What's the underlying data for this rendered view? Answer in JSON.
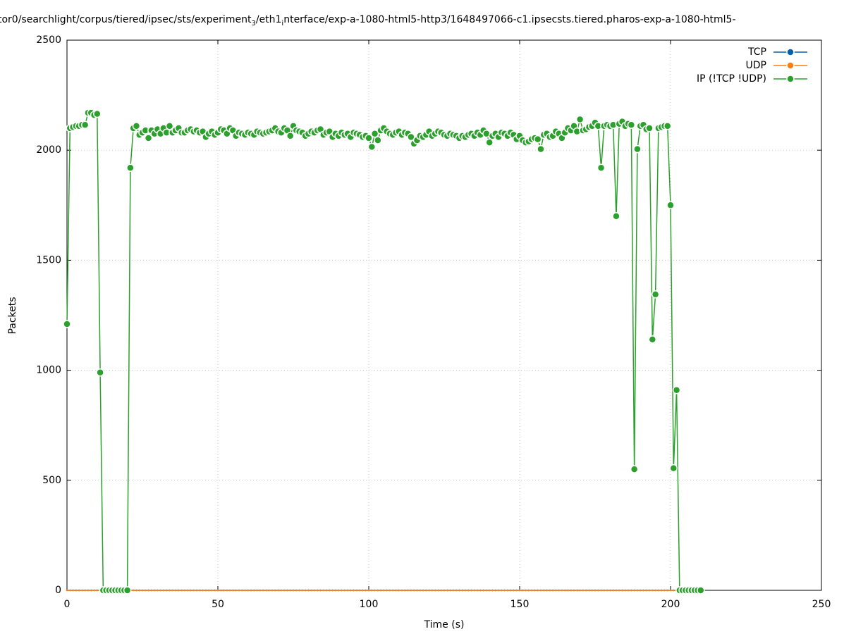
{
  "chart_data": {
    "type": "line",
    "title_segments": [
      {
        "text": "tor0/searchlight/corpus/tiered/ipsec/sts/experiment",
        "sub": false
      },
      {
        "text": "3",
        "sub": true
      },
      {
        "text": "/eth1",
        "sub": false
      },
      {
        "text": "i",
        "sub": true
      },
      {
        "text": "nterface/exp-a-1080-html5-http3/1648497066-c1.ipsecsts.tiered.pharos-exp-a-1080-html5-",
        "sub": false
      }
    ],
    "xlabel": "Time (s)",
    "ylabel": "Packets",
    "xlim": [
      0,
      250
    ],
    "xticks": [
      0,
      50,
      100,
      150,
      200,
      250
    ],
    "ylim": [
      0,
      2500
    ],
    "yticks": [
      0,
      500,
      1000,
      1500,
      2000,
      2500
    ],
    "grid": true,
    "legend": "top-right",
    "x": [
      0,
      1,
      2,
      3,
      4,
      5,
      6,
      7,
      8,
      9,
      10,
      11,
      12,
      13,
      14,
      15,
      16,
      17,
      18,
      19,
      20,
      21,
      22,
      23,
      24,
      25,
      26,
      27,
      28,
      29,
      30,
      31,
      32,
      33,
      34,
      35,
      36,
      37,
      38,
      39,
      40,
      41,
      42,
      43,
      44,
      45,
      46,
      47,
      48,
      49,
      50,
      51,
      52,
      53,
      54,
      55,
      56,
      57,
      58,
      59,
      60,
      61,
      62,
      63,
      64,
      65,
      66,
      67,
      68,
      69,
      70,
      71,
      72,
      73,
      74,
      75,
      76,
      77,
      78,
      79,
      80,
      81,
      82,
      83,
      84,
      85,
      86,
      87,
      88,
      89,
      90,
      91,
      92,
      93,
      94,
      95,
      96,
      97,
      98,
      99,
      100,
      101,
      102,
      103,
      104,
      105,
      106,
      107,
      108,
      109,
      110,
      111,
      112,
      113,
      114,
      115,
      116,
      117,
      118,
      119,
      120,
      121,
      122,
      123,
      124,
      125,
      126,
      127,
      128,
      129,
      130,
      131,
      132,
      133,
      134,
      135,
      136,
      137,
      138,
      139,
      140,
      141,
      142,
      143,
      144,
      145,
      146,
      147,
      148,
      149,
      150,
      151,
      152,
      153,
      154,
      155,
      156,
      157,
      158,
      159,
      160,
      161,
      162,
      163,
      164,
      165,
      166,
      167,
      168,
      169,
      170,
      171,
      172,
      173,
      174,
      175,
      176,
      177,
      178,
      179,
      180,
      181,
      182,
      183,
      184,
      185,
      186,
      187,
      188,
      189,
      190,
      191,
      192,
      193,
      194,
      195,
      196,
      197,
      198,
      199,
      200,
      201,
      202,
      203,
      204,
      205,
      206,
      207,
      208,
      209,
      210
    ],
    "series": [
      {
        "name": "TCP",
        "color": "#0060ad",
        "values": [
          0,
          0,
          0,
          0,
          0,
          0,
          0,
          0,
          0,
          0,
          0,
          0,
          0,
          0,
          0,
          0,
          0,
          0,
          0,
          0,
          0,
          0,
          0,
          0,
          0,
          0,
          0,
          0,
          0,
          0,
          0,
          0,
          0,
          0,
          0,
          0,
          0,
          0,
          0,
          0,
          0,
          0,
          0,
          0,
          0,
          0,
          0,
          0,
          0,
          0,
          0,
          0,
          0,
          0,
          0,
          0,
          0,
          0,
          0,
          0,
          0,
          0,
          0,
          0,
          0,
          0,
          0,
          0,
          0,
          0,
          0,
          0,
          0,
          0,
          0,
          0,
          0,
          0,
          0,
          0,
          0,
          0,
          0,
          0,
          0,
          0,
          0,
          0,
          0,
          0,
          0,
          0,
          0,
          0,
          0,
          0,
          0,
          0,
          0,
          0,
          0,
          0,
          0,
          0,
          0,
          0,
          0,
          0,
          0,
          0,
          0,
          0,
          0,
          0,
          0,
          0,
          0,
          0,
          0,
          0,
          0,
          0,
          0,
          0,
          0,
          0,
          0,
          0,
          0,
          0,
          0,
          0,
          0,
          0,
          0,
          0,
          0,
          0,
          0,
          0,
          0,
          0,
          0,
          0,
          0,
          0,
          0,
          0,
          0,
          0,
          0,
          0,
          0,
          0,
          0,
          0,
          0,
          0,
          0,
          0,
          0,
          0,
          0,
          0,
          0,
          0,
          0,
          0,
          0,
          0,
          0,
          0,
          0,
          0,
          0,
          0,
          0,
          0,
          0,
          0,
          0,
          0,
          0,
          0,
          0,
          0,
          0,
          0,
          0,
          0,
          0,
          0,
          0,
          0,
          0,
          0,
          0,
          0,
          0,
          0,
          0,
          0,
          0,
          0,
          0,
          0,
          0,
          0,
          0,
          0,
          0
        ]
      },
      {
        "name": "UDP",
        "color": "#ff7f0e",
        "values": [
          0,
          0,
          0,
          0,
          0,
          0,
          0,
          0,
          0,
          0,
          0,
          0,
          0,
          0,
          0,
          0,
          0,
          0,
          0,
          0,
          0,
          0,
          0,
          0,
          0,
          0,
          0,
          0,
          0,
          0,
          0,
          0,
          0,
          0,
          0,
          0,
          0,
          0,
          0,
          0,
          0,
          0,
          0,
          0,
          0,
          0,
          0,
          0,
          0,
          0,
          0,
          0,
          0,
          0,
          0,
          0,
          0,
          0,
          0,
          0,
          0,
          0,
          0,
          0,
          0,
          0,
          0,
          0,
          0,
          0,
          0,
          0,
          0,
          0,
          0,
          0,
          0,
          0,
          0,
          0,
          0,
          0,
          0,
          0,
          0,
          0,
          0,
          0,
          0,
          0,
          0,
          0,
          0,
          0,
          0,
          0,
          0,
          0,
          0,
          0,
          0,
          0,
          0,
          0,
          0,
          0,
          0,
          0,
          0,
          0,
          0,
          0,
          0,
          0,
          0,
          0,
          0,
          0,
          0,
          0,
          0,
          0,
          0,
          0,
          0,
          0,
          0,
          0,
          0,
          0,
          0,
          0,
          0,
          0,
          0,
          0,
          0,
          0,
          0,
          0,
          0,
          0,
          0,
          0,
          0,
          0,
          0,
          0,
          0,
          0,
          0,
          0,
          0,
          0,
          0,
          0,
          0,
          0,
          0,
          0,
          0,
          0,
          0,
          0,
          0,
          0,
          0,
          0,
          0,
          0,
          0,
          0,
          0,
          0,
          0,
          0,
          0,
          0,
          0,
          0,
          0,
          0,
          0,
          0,
          0,
          0,
          0,
          0,
          0,
          0,
          0,
          0,
          0,
          0,
          0,
          0,
          0,
          0,
          0,
          0,
          0,
          0,
          0,
          0,
          0,
          0,
          0,
          0,
          0,
          0,
          0
        ]
      },
      {
        "name": "IP (!TCP  !UDP)",
        "color": "#2ca02c",
        "values": [
          1210,
          2100,
          2105,
          2110,
          2110,
          2115,
          2115,
          2170,
          2170,
          2160,
          2165,
          990,
          0,
          0,
          0,
          0,
          0,
          0,
          0,
          0,
          0,
          1920,
          2100,
          2110,
          2070,
          2080,
          2090,
          2055,
          2090,
          2075,
          2095,
          2075,
          2100,
          2080,
          2110,
          2080,
          2090,
          2100,
          2080,
          2080,
          2090,
          2095,
          2085,
          2090,
          2080,
          2085,
          2060,
          2075,
          2085,
          2070,
          2080,
          2095,
          2090,
          2075,
          2100,
          2090,
          2065,
          2080,
          2075,
          2070,
          2080,
          2075,
          2070,
          2085,
          2080,
          2075,
          2080,
          2085,
          2090,
          2100,
          2085,
          2080,
          2100,
          2090,
          2065,
          2110,
          2090,
          2085,
          2080,
          2065,
          2075,
          2085,
          2080,
          2090,
          2095,
          2070,
          2080,
          2085,
          2060,
          2075,
          2065,
          2080,
          2070,
          2075,
          2060,
          2080,
          2075,
          2070,
          2060,
          2065,
          2055,
          2015,
          2075,
          2045,
          2090,
          2100,
          2085,
          2075,
          2070,
          2080,
          2085,
          2070,
          2080,
          2075,
          2060,
          2030,
          2045,
          2065,
          2060,
          2070,
          2085,
          2065,
          2075,
          2085,
          2080,
          2070,
          2065,
          2075,
          2070,
          2065,
          2055,
          2065,
          2060,
          2070,
          2075,
          2065,
          2080,
          2070,
          2090,
          2075,
          2035,
          2065,
          2075,
          2060,
          2080,
          2075,
          2065,
          2080,
          2070,
          2050,
          2065,
          2045,
          2035,
          2040,
          2050,
          2055,
          2050,
          2005,
          2070,
          2075,
          2060,
          2065,
          2085,
          2075,
          2055,
          2080,
          2100,
          2090,
          2110,
          2085,
          2140,
          2090,
          2095,
          2105,
          2110,
          2125,
          2110,
          1920,
          2110,
          2115,
          2110,
          2115,
          1700,
          2120,
          2130,
          2110,
          2120,
          2115,
          550,
          2005,
          2110,
          2115,
          2095,
          2100,
          1140,
          1345,
          2100,
          2105,
          2110,
          2110,
          1750,
          555,
          910,
          0,
          0,
          0,
          0,
          0,
          0,
          0,
          0
        ]
      }
    ]
  }
}
